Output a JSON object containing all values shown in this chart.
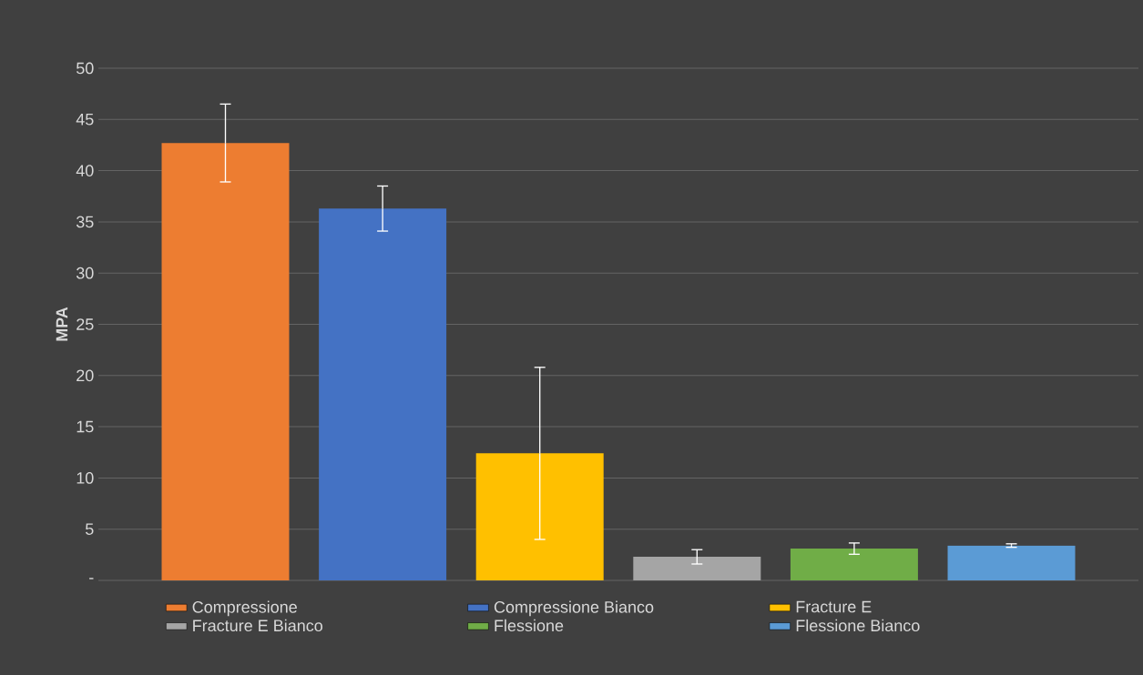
{
  "chart_data": {
    "type": "bar",
    "ylabel": "MPA",
    "categories": [
      null
    ],
    "series": [
      {
        "name": "Compressione",
        "color": "#ed7d31",
        "values": [
          42.7
        ],
        "errors": [
          3.8
        ]
      },
      {
        "name": "Compressione Bianco",
        "color": "#4472c4",
        "values": [
          36.3
        ],
        "errors": [
          2.2
        ]
      },
      {
        "name": "Fracture E",
        "color": "#ffc000",
        "values": [
          12.4
        ],
        "errors": [
          8.4
        ]
      },
      {
        "name": "Fracture E Bianco",
        "color": "#a5a5a5",
        "values": [
          2.3
        ],
        "errors": [
          0.7
        ]
      },
      {
        "name": "Flessione",
        "color": "#70ad47",
        "values": [
          3.1
        ],
        "errors": [
          0.55
        ]
      },
      {
        "name": "Flessione Bianco",
        "color": "#5b9bd5",
        "values": [
          3.4
        ],
        "errors": [
          0.17
        ]
      }
    ],
    "ylim": [
      0,
      50
    ],
    "yticks": [
      {
        "value": 0,
        "label": "-"
      },
      5,
      10,
      15,
      20,
      25,
      30,
      35,
      40,
      45,
      50
    ],
    "grid": "y",
    "legend": "bottom"
  }
}
